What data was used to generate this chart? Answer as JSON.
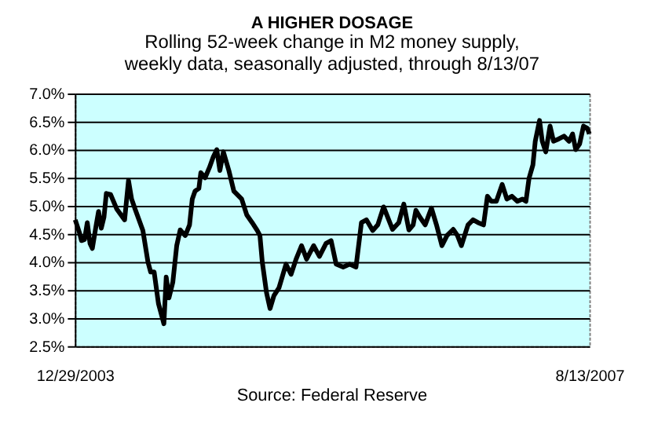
{
  "chart_data": {
    "type": "line",
    "title": "A HIGHER DOSAGE",
    "subtitle": [
      "Rolling 52-week change in M2 money supply,",
      "weekly data, seasonally adjusted, through 8/13/07"
    ],
    "annotations": [
      "Source: Federal Reserve"
    ],
    "x": [
      "2003-12-30",
      "2004-01-10",
      "2004-01-15",
      "2004-01-23",
      "2004-01-30",
      "2004-02-06",
      "2004-02-12",
      "2004-02-22",
      "2004-02-28",
      "2004-03-06",
      "2004-03-13",
      "2004-03-19",
      "2004-03-30",
      "2004-04-15",
      "2004-05-05",
      "2004-05-15",
      "2004-05-23",
      "2004-06-01",
      "2004-06-21",
      "2004-07-04",
      "2004-07-11",
      "2004-07-20",
      "2004-07-31",
      "2004-08-14",
      "2004-08-20",
      "2004-08-27",
      "2004-09-06",
      "2004-09-16",
      "2004-09-25",
      "2004-10-08",
      "2004-10-19",
      "2004-10-26",
      "2004-11-02",
      "2004-11-12",
      "2004-11-17",
      "2004-11-28",
      "2004-12-09",
      "2004-12-19",
      "2004-12-28",
      "2005-01-05",
      "2005-01-14",
      "2005-01-28",
      "2005-02-10",
      "2005-03-02",
      "2005-03-15",
      "2005-03-29",
      "2005-04-11",
      "2005-04-18",
      "2005-04-24",
      "2005-05-05",
      "2005-05-14",
      "2005-05-24",
      "2005-06-06",
      "2005-06-24",
      "2005-07-07",
      "2005-07-20",
      "2005-08-03",
      "2005-08-16",
      "2005-09-03",
      "2005-09-18",
      "2005-10-05",
      "2005-10-18",
      "2005-10-31",
      "2005-11-18",
      "2005-12-05",
      "2005-12-21",
      "2006-01-04",
      "2006-01-17",
      "2006-02-02",
      "2006-02-15",
      "2006-03-02",
      "2006-03-25",
      "2006-04-10",
      "2006-04-23",
      "2006-05-06",
      "2006-05-17",
      "2006-05-24",
      "2006-06-03",
      "2006-06-17",
      "2006-07-03",
      "2006-07-16",
      "2006-07-30",
      "2006-08-12",
      "2006-08-28",
      "2006-09-08",
      "2006-09-18",
      "2006-10-05",
      "2006-10-18",
      "2006-10-31",
      "2006-11-14",
      "2006-11-24",
      "2006-12-04",
      "2006-12-17",
      "2007-01-01",
      "2007-01-13",
      "2007-01-26",
      "2007-02-09",
      "2007-02-22",
      "2007-03-03",
      "2007-03-11",
      "2007-03-21",
      "2007-03-27",
      "2007-04-07",
      "2007-04-14",
      "2007-04-23",
      "2007-05-04",
      "2007-05-13",
      "2007-05-26",
      "2007-06-09",
      "2007-06-22",
      "2007-07-01",
      "2007-07-09",
      "2007-07-19",
      "2007-07-29",
      "2007-08-08",
      "2007-08-13"
    ],
    "series": [
      {
        "color": "#000000",
        "values": [
          4.75,
          4.52,
          4.38,
          4.4,
          4.7,
          4.33,
          4.24,
          4.66,
          4.9,
          4.6,
          4.8,
          5.22,
          5.2,
          4.94,
          4.75,
          5.45,
          5.12,
          4.94,
          4.56,
          4.0,
          3.82,
          3.82,
          3.26,
          2.9,
          3.73,
          3.36,
          3.64,
          4.29,
          4.57,
          4.47,
          4.66,
          5.12,
          5.26,
          5.31,
          5.59,
          5.5,
          5.68,
          5.87,
          6.0,
          5.63,
          5.96,
          5.63,
          5.26,
          5.12,
          4.84,
          4.7,
          4.56,
          4.47,
          4.0,
          3.45,
          3.17,
          3.4,
          3.54,
          3.96,
          3.78,
          4.05,
          4.29,
          4.05,
          4.29,
          4.1,
          4.33,
          4.38,
          3.96,
          3.91,
          3.96,
          3.91,
          4.7,
          4.75,
          4.56,
          4.66,
          4.98,
          4.58,
          4.7,
          5.03,
          4.57,
          4.66,
          4.92,
          4.8,
          4.66,
          4.96,
          4.66,
          4.29,
          4.47,
          4.58,
          4.47,
          4.29,
          4.66,
          4.75,
          4.7,
          4.66,
          5.17,
          5.08,
          5.08,
          5.38,
          5.12,
          5.17,
          5.08,
          5.12,
          5.08,
          5.49,
          5.73,
          6.15,
          6.52,
          6.15,
          5.96,
          6.42,
          6.15,
          6.19,
          6.24,
          6.15,
          6.28,
          6.0,
          6.1,
          6.42,
          6.38,
          6.28
        ]
      }
    ],
    "xlim": [
      "2003-12-29",
      "2007-08-13"
    ],
    "xticks": [
      {
        "value": "2003-12-29",
        "label": "12/29/2003"
      },
      {
        "value": "2007-08-13",
        "label": "8/13/2007"
      }
    ],
    "ylim": [
      2.5,
      7.0
    ],
    "yticks": [
      {
        "value": 2.5,
        "label": "2.5%"
      },
      {
        "value": 3.0,
        "label": "3.0%"
      },
      {
        "value": 3.5,
        "label": "3.5%"
      },
      {
        "value": 4.0,
        "label": "4.0%"
      },
      {
        "value": 4.5,
        "label": "4.5%"
      },
      {
        "value": 5.0,
        "label": "5.0%"
      },
      {
        "value": 5.5,
        "label": "5.5%"
      },
      {
        "value": 6.0,
        "label": "6.0%"
      },
      {
        "value": 6.5,
        "label": "6.5%"
      },
      {
        "value": 7.0,
        "label": "7.0%"
      }
    ],
    "grid": "y",
    "marker": "none",
    "line_style": "solid"
  }
}
